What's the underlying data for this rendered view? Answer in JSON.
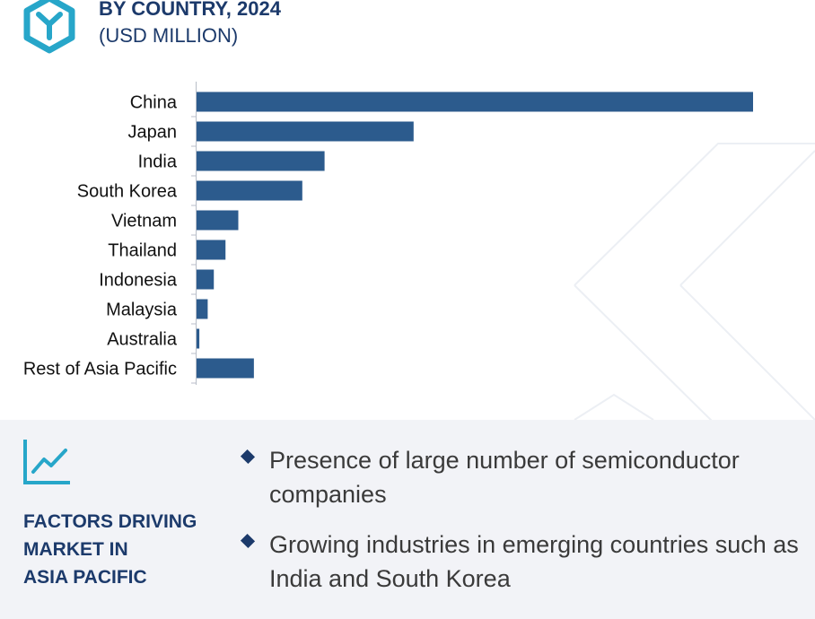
{
  "header": {
    "title": "BY COUNTRY, 2024",
    "subtitle": "(USD MILLION)"
  },
  "colors": {
    "bar": "#2c5b8d",
    "heading": "#1c3a6b",
    "logo": "#27a6c9",
    "panel_bg": "#f2f3f7"
  },
  "chart_data": {
    "type": "bar",
    "orientation": "horizontal",
    "categories": [
      "China",
      "Japan",
      "India",
      "South Korea",
      "Vietnam",
      "Thailand",
      "Indonesia",
      "Malaysia",
      "Australia",
      "Rest of Asia Pacific"
    ],
    "values": [
      100,
      39,
      23,
      19,
      7.5,
      5.2,
      3.1,
      2.0,
      0.5,
      10.3
    ],
    "value_scale": "relative (no axis values shown)",
    "xlim": [
      0,
      100
    ],
    "grid": false,
    "legend": "none"
  },
  "panel": {
    "icon": "trend-line-icon",
    "title_lines": [
      "FACTORS DRIVING",
      "MARKET IN",
      "ASIA PACIFIC"
    ],
    "bullets": [
      "Presence of large number of semiconductor companies",
      "Growing industries in emerging countries such as India and South Korea"
    ]
  }
}
